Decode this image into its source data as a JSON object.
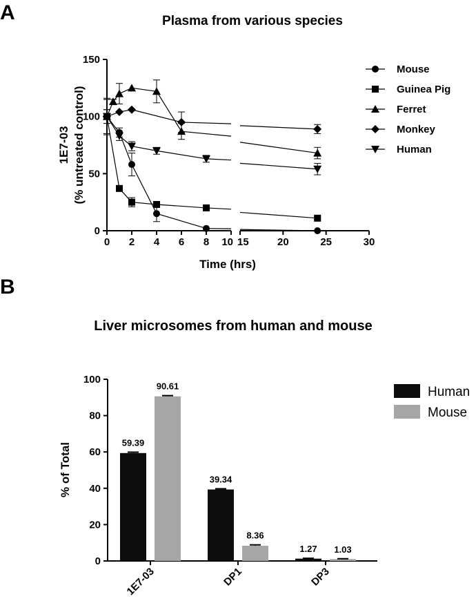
{
  "chart_data": [
    {
      "panel": "A",
      "type": "line",
      "title": "Plasma from various species",
      "xlabel": "Time (hrs)",
      "ylabel": [
        "1E7-03",
        "(% untreated control)"
      ],
      "xlim_segments": [
        [
          0,
          10
        ],
        [
          15,
          30
        ]
      ],
      "ylim": [
        0,
        150
      ],
      "x_ticks": [
        0,
        2,
        4,
        6,
        8,
        10,
        15,
        20,
        25,
        30
      ],
      "x_tick_labels": [
        "0",
        "2",
        "4",
        "6",
        "8",
        "10",
        "15",
        "20",
        "25",
        "30"
      ],
      "y_ticks": [
        0,
        50,
        100,
        150
      ],
      "legend_position": "right",
      "series": [
        {
          "name": "Mouse",
          "marker": "circle",
          "x": [
            0,
            1,
            2,
            4,
            8,
            24
          ],
          "y": [
            100,
            86,
            58,
            15,
            2,
            0
          ],
          "err": [
            6,
            4,
            10,
            7,
            0,
            0
          ]
        },
        {
          "name": "Guinea Pig",
          "marker": "square",
          "x": [
            0,
            1,
            2,
            4,
            8,
            24
          ],
          "y": [
            100,
            37,
            25,
            23,
            20,
            11
          ],
          "err": [
            6,
            2,
            4,
            2,
            1,
            1
          ]
        },
        {
          "name": "Ferret",
          "marker": "triangle-up",
          "x": [
            0,
            0.5,
            1,
            2,
            4,
            6,
            24
          ],
          "y": [
            100,
            113,
            120,
            125,
            122,
            87,
            68
          ],
          "err": [
            15,
            2,
            9,
            0,
            10,
            7,
            5
          ]
        },
        {
          "name": "Monkey",
          "marker": "diamond",
          "x": [
            0,
            1,
            2,
            6,
            24
          ],
          "y": [
            100,
            104,
            106,
            95,
            89
          ],
          "err": [
            16,
            0,
            0,
            9,
            4
          ]
        },
        {
          "name": "Human",
          "marker": "triangle-down",
          "x": [
            0,
            1,
            2,
            4,
            8,
            24
          ],
          "y": [
            100,
            83,
            74,
            70,
            63,
            54
          ],
          "err": [
            15,
            4,
            4,
            3,
            3,
            5
          ]
        }
      ]
    },
    {
      "panel": "B",
      "type": "bar",
      "title": "Liver microsomes from human and mouse",
      "xlabel": "",
      "ylabel": "% of Total",
      "ylim": [
        0,
        100
      ],
      "y_ticks": [
        0,
        20,
        40,
        60,
        80,
        100
      ],
      "categories": [
        "1E7-03",
        "DP1",
        "DP3"
      ],
      "legend_position": "top-right",
      "series": [
        {
          "name": "Human",
          "color": "#0d0d0d",
          "values": [
            59.39,
            39.34,
            1.27
          ],
          "labels": [
            "59.39",
            "39.34",
            "1.27"
          ],
          "err": [
            0.5,
            0.4,
            0.2
          ]
        },
        {
          "name": "Mouse",
          "color": "#a6a6a6",
          "values": [
            90.61,
            8.36,
            1.03
          ],
          "labels": [
            "90.61",
            "8.36",
            "1.03"
          ],
          "err": [
            0.4,
            0.5,
            0.2
          ]
        }
      ]
    }
  ]
}
